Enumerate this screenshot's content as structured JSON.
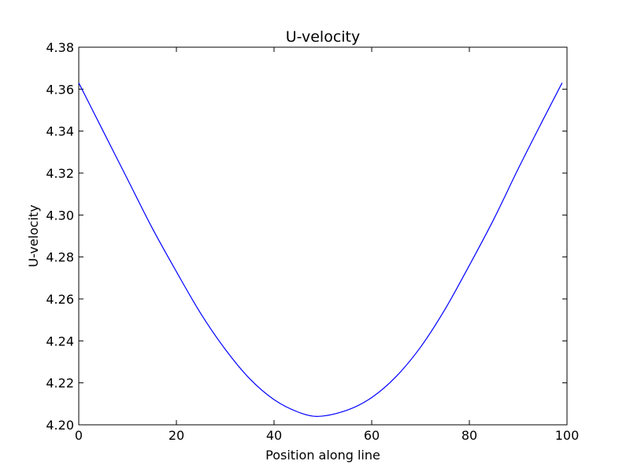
{
  "chart_data": {
    "type": "line",
    "title": "U-velocity",
    "xlabel": "Position along line",
    "ylabel": "U-velocity",
    "xlim": [
      0,
      100
    ],
    "ylim": [
      4.2,
      4.38
    ],
    "xticks": [
      0,
      20,
      40,
      60,
      80,
      100
    ],
    "xtick_labels": [
      "0",
      "20",
      "40",
      "60",
      "80",
      "100"
    ],
    "yticks": [
      4.2,
      4.22,
      4.24,
      4.26,
      4.28,
      4.3,
      4.32,
      4.34,
      4.36,
      4.38
    ],
    "ytick_labels": [
      "4.20",
      "4.22",
      "4.24",
      "4.26",
      "4.28",
      "4.30",
      "4.32",
      "4.34",
      "4.36",
      "4.38"
    ],
    "grid": false,
    "series": [
      {
        "color": "#0000ff",
        "x": [
          0,
          5,
          10,
          15,
          20,
          25,
          30,
          35,
          40,
          45,
          49,
          55,
          60,
          65,
          70,
          75,
          80,
          85,
          90,
          95,
          99
        ],
        "y": [
          4.363,
          4.34,
          4.317,
          4.294,
          4.273,
          4.253,
          4.236,
          4.222,
          4.212,
          4.206,
          4.204,
          4.207,
          4.213,
          4.223,
          4.237,
          4.255,
          4.276,
          4.298,
          4.322,
          4.345,
          4.363
        ]
      }
    ]
  }
}
